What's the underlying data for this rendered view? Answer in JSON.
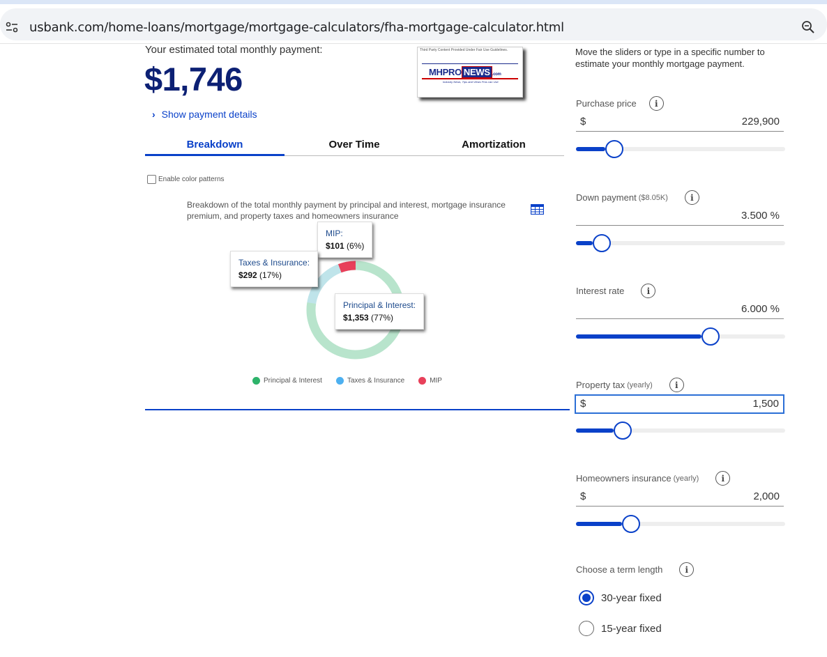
{
  "browser": {
    "url": "usbank.com/home-loans/mortgage/mortgage-calculators/fha-mortgage-calculator.html"
  },
  "summary": {
    "label": "Your estimated total monthly payment:",
    "amount": "$1,746",
    "show_details": "Show payment details"
  },
  "logo": {
    "caption": "Third Party Content Provided Under Fair Use Guidelines.",
    "word_mhpro": "MHPRO",
    "word_news": "NEWS",
    "word_com": ".com",
    "tagline": "Industry News, Tips and Views Pros can Use"
  },
  "tabs": [
    "Breakdown",
    "Over Time",
    "Amortization"
  ],
  "chart": {
    "enable_patterns": "Enable color patterns",
    "description": "Breakdown of the total monthly payment by principal and interest, mortgage insurance premium, and property taxes and homeowners insurance",
    "tooltips": {
      "mip_label": "MIP:",
      "mip_amount": "$101",
      "mip_pct": "(6%)",
      "ti_label": "Taxes & Insurance:",
      "ti_amount": "$292",
      "ti_pct": "(17%)",
      "pi_label": "Principal & Interest:",
      "pi_amount": "$1,353",
      "pi_pct": "(77%)"
    },
    "legend": [
      "Principal & Interest",
      "Taxes & Insurance",
      "MIP"
    ]
  },
  "chart_data": {
    "type": "pie",
    "categories": [
      "Principal & Interest",
      "Taxes & Insurance",
      "MIP"
    ],
    "values": [
      1353,
      292,
      101
    ],
    "percents": [
      77,
      17,
      6
    ],
    "colors": [
      "#2db36a",
      "#4db0f0",
      "#e8405a"
    ],
    "title": "",
    "legend": "bottom"
  },
  "form": {
    "intro": "Move the sliders or type in a specific number to estimate your monthly mortgage payment.",
    "purchase_price": {
      "label": "Purchase price",
      "currency": "$",
      "value": "229,900",
      "slider_fraction": 0.14
    },
    "down_payment": {
      "label": "Down payment",
      "sub": "($8.05K)",
      "value": "3.500 %",
      "slider_fraction": 0.08
    },
    "interest_rate": {
      "label": "Interest rate",
      "value": "6.000 %",
      "slider_fraction": 0.6
    },
    "property_tax": {
      "label": "Property tax",
      "sub": "(yearly)",
      "currency": "$",
      "value": "1,500",
      "slider_fraction": 0.18
    },
    "home_insurance": {
      "label": "Homeowners insurance",
      "sub": "(yearly)",
      "currency": "$",
      "value": "2,000",
      "slider_fraction": 0.22
    },
    "term": {
      "label": "Choose a term length",
      "options": [
        "30-year fixed",
        "15-year fixed"
      ],
      "selected": "30-year fixed"
    }
  },
  "colors": {
    "accent": "#0a41c9",
    "amount": "#0c2074"
  }
}
